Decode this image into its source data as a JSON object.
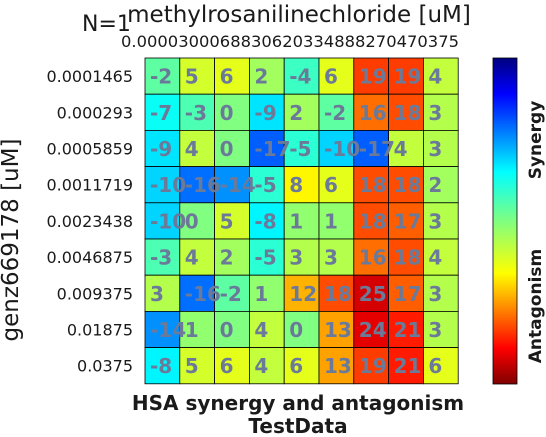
{
  "chart_data": {
    "type": "heatmap",
    "annotation": "N=1",
    "x_axis": {
      "label": "methylrosanilinechloride [uM]",
      "ticks": [
        "0.000000",
        "0.000293",
        "0.000586",
        "0.001172",
        "0.002344",
        "0.004688",
        "0.009375",
        "0.01875",
        "0.0375"
      ],
      "tick_text_as_printed": "0.0000300068830620334888270470375"
    },
    "y_axis": {
      "label": "genz669178 [uM]",
      "ticks": [
        "0.0001465",
        "0.000293",
        "0.0005859",
        "0.0011719",
        "0.0023438",
        "0.0046875",
        "0.009375",
        "0.01875",
        "0.0375"
      ]
    },
    "values": [
      [
        -2,
        5,
        6,
        2,
        -4,
        6,
        19,
        19,
        4
      ],
      [
        -7,
        -3,
        0,
        -9,
        2,
        -2,
        16,
        18,
        3
      ],
      [
        -9,
        4,
        0,
        -17,
        -5,
        -10,
        -17,
        4,
        3
      ],
      [
        -10,
        -16,
        -14,
        -5,
        8,
        6,
        18,
        18,
        2
      ],
      [
        -10,
        0,
        5,
        -8,
        1,
        1,
        18,
        17,
        3
      ],
      [
        -3,
        4,
        2,
        -5,
        3,
        3,
        16,
        18,
        4
      ],
      [
        3,
        -16,
        -2,
        1,
        12,
        18,
        25,
        17,
        3
      ],
      [
        -14,
        1,
        0,
        4,
        0,
        13,
        24,
        21,
        3
      ],
      [
        -8,
        5,
        6,
        4,
        6,
        13,
        19,
        21,
        6
      ]
    ],
    "colorscale": {
      "name": "jet",
      "min": -30,
      "max": 30,
      "top_label": "Synergy",
      "bottom_label": "Antagonism"
    },
    "title": "HSA synergy and antagonism",
    "subtitle": "TestData"
  }
}
